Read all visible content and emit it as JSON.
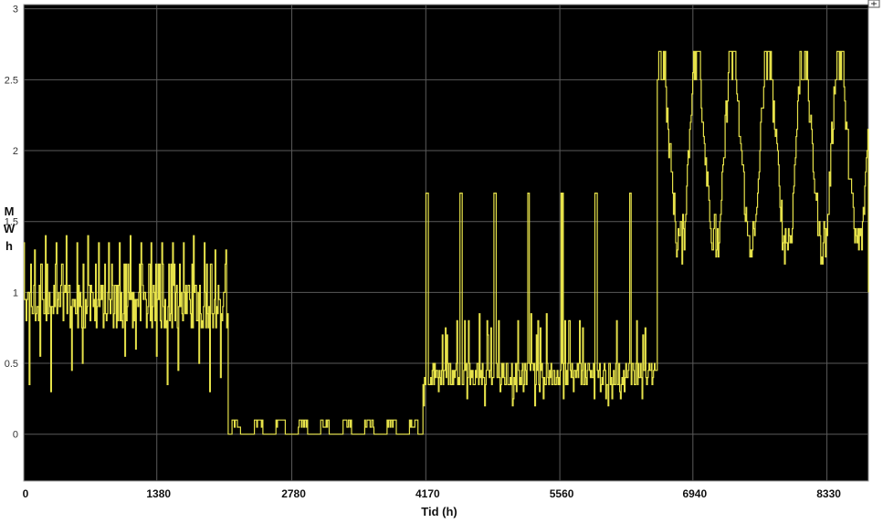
{
  "chart_data": {
    "type": "line",
    "title": "",
    "xlabel": "Tid (h)",
    "ylabel_lines": [
      "M",
      "W",
      "h"
    ],
    "xlim": [
      0,
      8760
    ],
    "ylim": [
      -0.33,
      3.03
    ],
    "x_ticks": [
      0,
      1380,
      2780,
      4170,
      5560,
      6940,
      8330
    ],
    "x_tick_labels": [
      "0",
      "1380",
      "2780",
      "4170",
      "5560",
      "6940",
      "8330"
    ],
    "y_ticks": [
      0,
      0.5,
      1,
      1.5,
      2,
      2.5,
      3
    ],
    "y_tick_labels": [
      "0",
      "0.5",
      "1",
      "1.5",
      "2",
      "2.5",
      "3"
    ],
    "grid": true,
    "background": "#000000",
    "line_color": "#e6e24a",
    "series": [
      {
        "segments": [
          {
            "x_start": 0,
            "x_end": 2120,
            "base": 0.9,
            "spike_high": 1.4,
            "spike_low": 0.3,
            "spike_period": 110,
            "pattern": "noisy"
          },
          {
            "x_start": 2120,
            "x_end": 4140,
            "base": 0.02,
            "spike_high": 0.1,
            "spike_low": 0.0,
            "spike_period": 230,
            "pattern": "step"
          },
          {
            "x_start": 4140,
            "x_end": 6570,
            "base": 0.42,
            "spike_high": 1.7,
            "spike_low": 0.2,
            "spike_period": 350,
            "pattern": "noisy-burst"
          },
          {
            "x_start": 6570,
            "x_end": 8760,
            "base": 1.9,
            "spike_high": 2.7,
            "spike_low": 1.2,
            "spike_period": 370,
            "pattern": "plateau"
          }
        ]
      }
    ]
  }
}
